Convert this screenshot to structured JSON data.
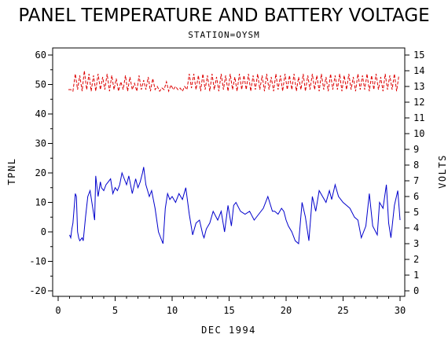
{
  "chart_data": {
    "type": "line",
    "title": "PANEL TEMPERATURE AND BATTERY VOLTAGE",
    "subtitle": "STATION=OYSM",
    "xlabel": "DEC 1994",
    "ylabel": "TPNL",
    "y2label": "VOLTS",
    "xlim": [
      0,
      30
    ],
    "ylim": [
      -20,
      60
    ],
    "y2lim": [
      0,
      15
    ],
    "x_ticks": [
      "0",
      "5",
      "10",
      "15",
      "20",
      "25",
      "30"
    ],
    "y_ticks": [
      "-20",
      "-10",
      "0",
      "10",
      "20",
      "30",
      "40",
      "50",
      "60"
    ],
    "y2_ticks": [
      "0",
      "1",
      "2",
      "3",
      "4",
      "5",
      "6",
      "7",
      "8",
      "9",
      "10",
      "11",
      "12",
      "13",
      "14",
      "15"
    ],
    "series": [
      {
        "axis": "left",
        "color": "#0000cc",
        "x": [
          1.0,
          1.1,
          1.2,
          1.3,
          1.5,
          1.6,
          1.7,
          1.8,
          1.9,
          2.1,
          2.2,
          2.4,
          2.6,
          2.8,
          3.0,
          3.2,
          3.3,
          3.5,
          3.7,
          3.8,
          4.0,
          4.2,
          4.4,
          4.6,
          4.8,
          5.0,
          5.2,
          5.4,
          5.6,
          5.8,
          6.0,
          6.2,
          6.5,
          6.8,
          7.0,
          7.2,
          7.4,
          7.5,
          7.7,
          8.0,
          8.2,
          8.5,
          8.8,
          9.2,
          9.4,
          9.6,
          9.8,
          10.0,
          10.3,
          10.6,
          10.9,
          11.2,
          11.5,
          11.8,
          12.1,
          12.4,
          12.7,
          12.8,
          13.0,
          13.3,
          13.6,
          14.0,
          14.3,
          14.6,
          14.9,
          15.2,
          15.4,
          15.6,
          16.0,
          16.4,
          16.8,
          17.2,
          17.6,
          18.0,
          18.4,
          18.8,
          19.0,
          19.3,
          19.6,
          19.8,
          20.0,
          20.2,
          20.5,
          20.8,
          21.1,
          21.4,
          21.7,
          22.0,
          22.3,
          22.6,
          22.9,
          23.2,
          23.5,
          23.8,
          24.0,
          24.3,
          24.6,
          25.0,
          25.3,
          25.6,
          26.0,
          26.3,
          26.6,
          27.0,
          27.3,
          27.6,
          28.0,
          28.2,
          28.5,
          28.8,
          29.0,
          29.2,
          29.5,
          29.8,
          30.0
        ],
        "values": [
          -1,
          -2,
          1,
          3,
          13,
          12,
          0,
          -2,
          -3,
          -2,
          -3,
          5,
          12,
          14,
          9,
          4,
          19,
          12,
          17,
          15,
          14,
          16,
          17,
          18,
          13,
          15,
          14,
          16,
          20,
          18,
          16,
          19,
          13,
          18,
          15,
          17,
          20,
          22,
          16,
          12,
          14,
          8,
          0,
          -4,
          8,
          13,
          11,
          12,
          10,
          13,
          11,
          15,
          6,
          -1,
          3,
          4,
          -1,
          -2,
          1,
          3,
          7,
          4,
          7,
          0,
          9,
          2,
          9,
          10,
          7,
          6,
          7,
          4,
          6,
          8,
          12,
          7,
          7,
          6,
          8,
          7,
          4,
          2,
          0,
          -3,
          -4,
          10,
          5,
          -3,
          12,
          7,
          14,
          12,
          10,
          14,
          11,
          16,
          12,
          10,
          9,
          8,
          5,
          4,
          -2,
          2,
          13,
          2,
          -1,
          10,
          8,
          16,
          3,
          -2,
          9,
          14,
          4
        ],
        "name": ""
      },
      {
        "axis": "right",
        "color": "#dd0000",
        "x": [
          0.9,
          1.1,
          1.3,
          1.5,
          1.7,
          1.9,
          2.1,
          2.3,
          2.5,
          2.7,
          2.9,
          3.1,
          3.3,
          3.5,
          3.7,
          3.9,
          4.1,
          4.3,
          4.5,
          4.7,
          4.9,
          5.1,
          5.3,
          5.5,
          5.7,
          5.9,
          6.1,
          6.3,
          6.5,
          6.7,
          6.9,
          7.1,
          7.3,
          7.5,
          7.7,
          7.9,
          8.1,
          8.3,
          8.5,
          8.7,
          8.9,
          9.1,
          9.3,
          9.5,
          9.7,
          9.9,
          10.1,
          10.3,
          10.5,
          10.7,
          10.9,
          11.1,
          11.3,
          11.5,
          11.7,
          11.9,
          12.1,
          12.3,
          12.5,
          12.7,
          12.9,
          13.1,
          13.3,
          13.5,
          13.7,
          13.9,
          14.1,
          14.3,
          14.5,
          14.7,
          14.9,
          15.1,
          15.3,
          15.5,
          15.7,
          15.9,
          16.1,
          16.3,
          16.5,
          16.7,
          16.9,
          17.1,
          17.3,
          17.5,
          17.7,
          17.9,
          18.1,
          18.3,
          18.5,
          18.7,
          18.9,
          19.1,
          19.3,
          19.5,
          19.7,
          19.9,
          20.1,
          20.3,
          20.5,
          20.7,
          20.9,
          21.1,
          21.3,
          21.5,
          21.7,
          21.9,
          22.1,
          22.3,
          22.5,
          22.7,
          22.9,
          23.1,
          23.3,
          23.5,
          23.7,
          23.9,
          24.1,
          24.3,
          24.5,
          24.7,
          24.9,
          25.1,
          25.3,
          25.5,
          25.7,
          25.9,
          26.1,
          26.3,
          26.5,
          26.7,
          26.9,
          27.1,
          27.3,
          27.5,
          27.7,
          27.9,
          28.1,
          28.3,
          28.5,
          28.7,
          28.9,
          29.1,
          29.3,
          29.5,
          29.7,
          29.9
        ],
        "values": [
          12.8,
          12.8,
          12.7,
          13.8,
          12.8,
          13.7,
          12.7,
          14.0,
          12.8,
          13.8,
          12.7,
          13.7,
          12.7,
          13.8,
          12.8,
          13.6,
          12.8,
          13.8,
          12.7,
          13.7,
          12.8,
          13.5,
          12.7,
          13.3,
          12.8,
          13.7,
          12.7,
          13.6,
          12.8,
          13.2,
          12.7,
          13.7,
          12.8,
          13.4,
          12.8,
          13.6,
          12.7,
          13.5,
          12.8,
          13.0,
          12.7,
          12.9,
          12.8,
          13.3,
          12.7,
          13.1,
          12.8,
          13.0,
          12.8,
          12.9,
          12.7,
          13.0,
          12.8,
          13.8,
          12.9,
          13.8,
          12.8,
          13.7,
          12.7,
          13.8,
          12.8,
          13.7,
          12.7,
          13.8,
          12.8,
          13.6,
          12.7,
          13.8,
          12.8,
          13.7,
          12.7,
          13.8,
          12.8,
          13.6,
          12.7,
          13.8,
          12.8,
          13.7,
          12.8,
          13.8,
          12.7,
          13.7,
          12.8,
          13.8,
          12.8,
          13.7,
          12.7,
          13.8,
          12.8,
          13.6,
          12.7,
          13.8,
          12.8,
          13.7,
          12.7,
          13.8,
          12.8,
          13.7,
          12.8,
          13.8,
          12.7,
          13.6,
          12.8,
          13.8,
          12.7,
          13.7,
          12.8,
          13.8,
          12.8,
          13.7,
          12.7,
          13.8,
          12.8,
          13.6,
          12.7,
          13.8,
          12.8,
          13.7,
          12.8,
          13.8,
          12.7,
          13.7,
          12.8,
          13.8,
          12.8,
          13.6,
          12.7,
          13.8,
          12.8,
          13.7,
          12.8,
          13.8,
          12.7,
          13.7,
          12.8,
          13.8,
          12.8,
          13.6,
          12.7,
          13.8,
          12.8,
          13.7,
          12.8,
          13.8,
          12.7,
          13.7
        ],
        "name": ""
      }
    ],
    "grid": false,
    "legend": "none"
  }
}
